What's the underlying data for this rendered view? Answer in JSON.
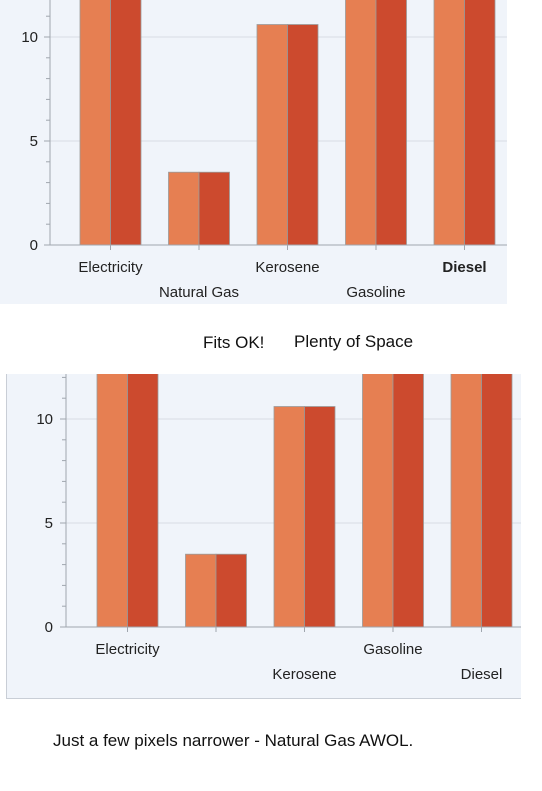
{
  "chart_data": [
    {
      "type": "bar",
      "categories": [
        "Electricity",
        "Natural Gas",
        "Kerosene",
        "Gasoline",
        "Diesel"
      ],
      "series": [
        {
          "values": [
            13,
            3.5,
            10.6,
            13,
            13
          ]
        },
        {
          "values": [
            13,
            3.5,
            10.6,
            13,
            13
          ]
        }
      ],
      "yticks": [
        "0",
        "5",
        "10"
      ],
      "ylim": [
        0,
        12
      ],
      "bold_category": "Diesel",
      "grid": true
    },
    {
      "type": "bar",
      "categories": [
        "Electricity",
        "",
        "Kerosene",
        "Gasoline",
        "Diesel"
      ],
      "series": [
        {
          "values": [
            13,
            3.5,
            10.6,
            13,
            13
          ]
        },
        {
          "values": [
            13,
            3.5,
            10.6,
            13,
            13
          ]
        }
      ],
      "yticks": [
        "0",
        "5",
        "10"
      ],
      "ylim": [
        0,
        12
      ],
      "grid": true
    }
  ],
  "colors": {
    "series1": "#e67f52",
    "series2": "#cc4a2e",
    "panel": "#f0f4fa",
    "axis": "#a0a6ae"
  },
  "captions": {
    "fits": "Fits OK!",
    "space": "Plenty of Space",
    "bottom": "Just a few pixels narrower - Natural Gas AWOL."
  }
}
